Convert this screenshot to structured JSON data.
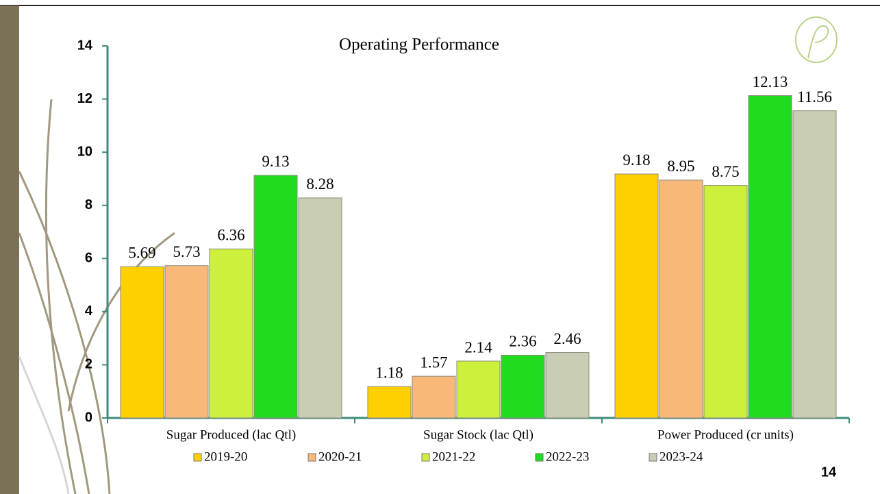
{
  "chart_data": {
    "type": "bar",
    "title": "Operating Performance",
    "categories": [
      "Sugar Produced (lac Qtl)",
      "Sugar Stock (lac Qtl)",
      "Power Produced (cr units)"
    ],
    "series": [
      {
        "name": "2019-20",
        "color": "#ffd000",
        "values": [
          5.69,
          1.18,
          9.18
        ]
      },
      {
        "name": "2020-21",
        "color": "#f8b87a",
        "values": [
          5.73,
          1.57,
          8.95
        ]
      },
      {
        "name": "2021-22",
        "color": "#cdf03c",
        "values": [
          6.36,
          2.14,
          8.75
        ]
      },
      {
        "name": "2022-23",
        "color": "#1fdc1f",
        "values": [
          9.13,
          2.36,
          12.13
        ]
      },
      {
        "name": "2023-24",
        "color": "#c9cdb3",
        "values": [
          8.28,
          2.46,
          11.56
        ]
      }
    ],
    "ylim": [
      0,
      14
    ],
    "yticks": [
      0,
      2,
      4,
      6,
      8,
      10,
      12,
      14
    ],
    "legend": "bottom"
  },
  "page_number": "14"
}
